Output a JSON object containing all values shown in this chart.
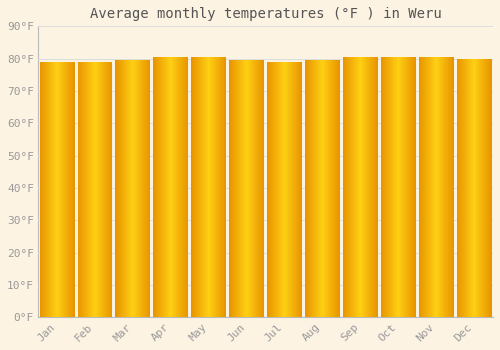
{
  "title": "Average monthly temperatures (°F ) in Weru",
  "months": [
    "Jan",
    "Feb",
    "Mar",
    "Apr",
    "May",
    "Jun",
    "Jul",
    "Aug",
    "Sep",
    "Oct",
    "Nov",
    "Dec"
  ],
  "values": [
    79.0,
    79.0,
    79.5,
    80.5,
    80.5,
    79.5,
    79.0,
    79.5,
    80.5,
    80.5,
    80.5,
    80.0
  ],
  "ylim": [
    0,
    90
  ],
  "yticks": [
    0,
    10,
    20,
    30,
    40,
    50,
    60,
    70,
    80,
    90
  ],
  "ytick_labels": [
    "0°F",
    "10°F",
    "20°F",
    "30°F",
    "40°F",
    "50°F",
    "60°F",
    "70°F",
    "80°F",
    "90°F"
  ],
  "background_color": "#fdf3e3",
  "bar_color_left": "#e89400",
  "bar_color_mid": "#ffd040",
  "bar_color_right": "#e89400",
  "grid_color": "#dddddd",
  "text_color": "#999999",
  "title_color": "#555555",
  "bar_width": 0.92,
  "title_fontsize": 10,
  "tick_fontsize": 8
}
